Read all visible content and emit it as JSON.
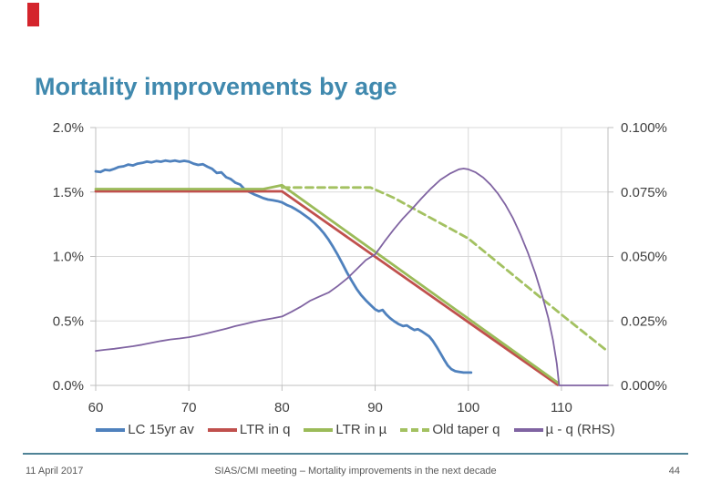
{
  "slide": {
    "title": "Mortality improvements by age",
    "title_color": "#4089AE",
    "accent_color": "#D4242C"
  },
  "footer": {
    "date": "11 April 2017",
    "center": "SIAS/CMI meeting – Mortality improvements in the next decade",
    "page": "44",
    "line_color": "#4F8396"
  },
  "chart_data": {
    "type": "line",
    "title": "",
    "xlabel": "",
    "ylabel_left": "",
    "ylabel_right": "",
    "x_ticks": [
      60,
      70,
      80,
      90,
      100,
      110
    ],
    "x_range": [
      60,
      115
    ],
    "left_axis": {
      "tick_labels": [
        "2.0%",
        "1.5%",
        "1.0%",
        "0.5%",
        "0.0%"
      ],
      "range": [
        0,
        2.0
      ]
    },
    "right_axis": {
      "tick_labels": [
        "0.100%",
        "0.075%",
        "0.050%",
        "0.025%",
        "0.000%"
      ],
      "range": [
        0,
        0.1
      ]
    },
    "grid": true,
    "grid_color": "#D9D9D9",
    "axis_color": "#BFBFBF",
    "label_color": "#404040",
    "legend_position": "bottom",
    "series": [
      {
        "name": "LC 15yr av",
        "axis": "left",
        "color": "#4F81BD",
        "width": 2.8,
        "dash": null,
        "points": [
          [
            60,
            1.66
          ],
          [
            60.5,
            1.655
          ],
          [
            61,
            1.672
          ],
          [
            61.5,
            1.668
          ],
          [
            62,
            1.68
          ],
          [
            62.5,
            1.695
          ],
          [
            63,
            1.7
          ],
          [
            63.5,
            1.713
          ],
          [
            64,
            1.706
          ],
          [
            64.5,
            1.72
          ],
          [
            65,
            1.726
          ],
          [
            65.5,
            1.736
          ],
          [
            66,
            1.73
          ],
          [
            66.5,
            1.74
          ],
          [
            67,
            1.735
          ],
          [
            67.5,
            1.744
          ],
          [
            68,
            1.738
          ],
          [
            68.5,
            1.744
          ],
          [
            69,
            1.736
          ],
          [
            69.5,
            1.742
          ],
          [
            70,
            1.736
          ],
          [
            70.5,
            1.72
          ],
          [
            71,
            1.71
          ],
          [
            71.5,
            1.716
          ],
          [
            72,
            1.696
          ],
          [
            72.5,
            1.68
          ],
          [
            73,
            1.648
          ],
          [
            73.5,
            1.652
          ],
          [
            74,
            1.615
          ],
          [
            74.5,
            1.6
          ],
          [
            75,
            1.572
          ],
          [
            75.5,
            1.558
          ],
          [
            76,
            1.52
          ],
          [
            76.5,
            1.5
          ],
          [
            77,
            1.482
          ],
          [
            77.5,
            1.468
          ],
          [
            78,
            1.452
          ],
          [
            78.5,
            1.442
          ],
          [
            79,
            1.436
          ],
          [
            79.5,
            1.43
          ],
          [
            80,
            1.42
          ],
          [
            80.5,
            1.4
          ],
          [
            81,
            1.385
          ],
          [
            81.5,
            1.365
          ],
          [
            82,
            1.342
          ],
          [
            82.5,
            1.316
          ],
          [
            83,
            1.29
          ],
          [
            83.5,
            1.258
          ],
          [
            84,
            1.222
          ],
          [
            84.5,
            1.18
          ],
          [
            85,
            1.13
          ],
          [
            85.5,
            1.072
          ],
          [
            86,
            1.01
          ],
          [
            86.5,
            0.942
          ],
          [
            87,
            0.872
          ],
          [
            87.5,
            0.81
          ],
          [
            88,
            0.75
          ],
          [
            88.5,
            0.7
          ],
          [
            89,
            0.66
          ],
          [
            89.5,
            0.625
          ],
          [
            90,
            0.59
          ],
          [
            90.4,
            0.575
          ],
          [
            90.8,
            0.585
          ],
          [
            91.2,
            0.55
          ],
          [
            91.6,
            0.522
          ],
          [
            92,
            0.5
          ],
          [
            92.5,
            0.476
          ],
          [
            93,
            0.46
          ],
          [
            93.4,
            0.466
          ],
          [
            93.8,
            0.446
          ],
          [
            94.2,
            0.43
          ],
          [
            94.6,
            0.436
          ],
          [
            95,
            0.42
          ],
          [
            95.4,
            0.4
          ],
          [
            95.8,
            0.38
          ],
          [
            96.2,
            0.345
          ],
          [
            96.6,
            0.3
          ],
          [
            97,
            0.25
          ],
          [
            97.4,
            0.2
          ],
          [
            97.8,
            0.155
          ],
          [
            98.2,
            0.125
          ],
          [
            98.6,
            0.11
          ],
          [
            99,
            0.105
          ],
          [
            99.5,
            0.1
          ],
          [
            100.3,
            0.1
          ]
        ]
      },
      {
        "name": "LTR in q",
        "axis": "left",
        "color": "#C0504D",
        "width": 2.8,
        "dash": null,
        "points": [
          [
            60,
            1.505
          ],
          [
            80,
            1.505
          ],
          [
            109.6,
            0.004
          ]
        ]
      },
      {
        "name": "LTR in µ",
        "axis": "left",
        "color": "#9BBB59",
        "width": 2.8,
        "dash": null,
        "points": [
          [
            60,
            1.523
          ],
          [
            78,
            1.523
          ],
          [
            80,
            1.553
          ],
          [
            109.68,
            0.018
          ]
        ]
      },
      {
        "name": "Old taper q",
        "axis": "left",
        "color": "#A3C161",
        "width": 2.8,
        "dash": "8 5",
        "points": [
          [
            80,
            1.535
          ],
          [
            89.5,
            1.535
          ],
          [
            92,
            1.455
          ],
          [
            100,
            1.14
          ],
          [
            110,
            0.55
          ],
          [
            115,
            0.262
          ]
        ]
      },
      {
        "name": "µ - q (RHS)",
        "axis": "right",
        "color": "#8064A2",
        "width": 1.8,
        "dash": null,
        "points": [
          [
            60,
            0.0134
          ],
          [
            61,
            0.0138
          ],
          [
            62,
            0.0142
          ],
          [
            63,
            0.0147
          ],
          [
            64,
            0.0152
          ],
          [
            65,
            0.0158
          ],
          [
            66,
            0.0165
          ],
          [
            67,
            0.0172
          ],
          [
            68,
            0.0178
          ],
          [
            69,
            0.0182
          ],
          [
            70,
            0.0187
          ],
          [
            71,
            0.0194
          ],
          [
            72,
            0.0202
          ],
          [
            73,
            0.0211
          ],
          [
            74,
            0.022
          ],
          [
            75,
            0.023
          ],
          [
            76,
            0.0238
          ],
          [
            77,
            0.0247
          ],
          [
            78,
            0.0254
          ],
          [
            79,
            0.026
          ],
          [
            80,
            0.0267
          ],
          [
            81,
            0.0285
          ],
          [
            82,
            0.0305
          ],
          [
            83,
            0.0328
          ],
          [
            84,
            0.0344
          ],
          [
            85,
            0.036
          ],
          [
            86,
            0.0386
          ],
          [
            87,
            0.0415
          ],
          [
            88,
            0.045
          ],
          [
            89,
            0.0486
          ],
          [
            90,
            0.0508
          ],
          [
            90.5,
            0.0533
          ],
          [
            91,
            0.0558
          ],
          [
            92,
            0.0605
          ],
          [
            93,
            0.0648
          ],
          [
            94,
            0.0686
          ],
          [
            95,
            0.0726
          ],
          [
            96,
            0.0764
          ],
          [
            97,
            0.0797
          ],
          [
            98,
            0.0821
          ],
          [
            99,
            0.0838
          ],
          [
            99.5,
            0.0841
          ],
          [
            100,
            0.0838
          ],
          [
            100.8,
            0.0826
          ],
          [
            101.6,
            0.0806
          ],
          [
            102.4,
            0.0778
          ],
          [
            103.2,
            0.0743
          ],
          [
            104,
            0.07
          ],
          [
            104.8,
            0.0648
          ],
          [
            105.6,
            0.0586
          ],
          [
            106.4,
            0.0515
          ],
          [
            107.2,
            0.0434
          ],
          [
            108,
            0.034
          ],
          [
            108.6,
            0.026
          ],
          [
            109.1,
            0.0175
          ],
          [
            109.5,
            0.0085
          ],
          [
            109.75,
            0.0
          ],
          [
            115,
            0.0
          ]
        ]
      }
    ]
  }
}
